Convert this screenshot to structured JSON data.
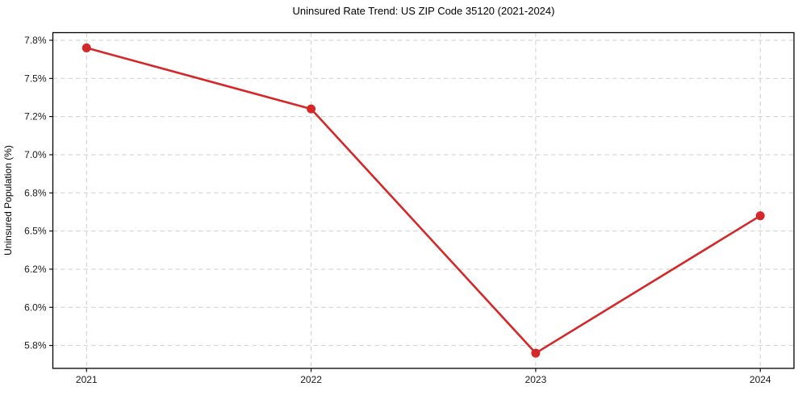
{
  "figure": {
    "title": "Uninsured Rate Trend: US ZIP Code 35120 (2021-2024)",
    "y_axis_title": "Uninsured Population (%)"
  },
  "chart_data": {
    "type": "line",
    "title": "Uninsured Rate Trend: US ZIP Code 35120 (2021-2024)",
    "xlabel": "",
    "ylabel": "Uninsured Population (%)",
    "x": [
      2021,
      2022,
      2023,
      2024
    ],
    "series": [
      {
        "name": "uninsured_rate_pct",
        "values": [
          7.7,
          7.3,
          5.7,
          6.6
        ]
      }
    ],
    "xlim": [
      2020.85,
      2024.15
    ],
    "ylim": [
      5.6,
      7.8
    ],
    "xticks": [
      {
        "value": 2021,
        "label": "2021"
      },
      {
        "value": 2022,
        "label": "2022"
      },
      {
        "value": 2023,
        "label": "2023"
      },
      {
        "value": 2024,
        "label": "2024"
      }
    ],
    "yticks": [
      {
        "value": 7.75,
        "label": "7.8%"
      },
      {
        "value": 7.5,
        "label": "7.5%"
      },
      {
        "value": 7.25,
        "label": "7.2%"
      },
      {
        "value": 7.0,
        "label": "7.0%"
      },
      {
        "value": 6.75,
        "label": "6.8%"
      },
      {
        "value": 6.5,
        "label": "6.5%"
      },
      {
        "value": 6.25,
        "label": "6.2%"
      },
      {
        "value": 6.0,
        "label": "6.0%"
      },
      {
        "value": 5.75,
        "label": "5.8%"
      }
    ],
    "grid": true,
    "grid_style": "dashed",
    "legend": "none",
    "colors": {
      "line": "#d62728",
      "marker": "#d62728",
      "grid": "#cfcfcf",
      "spine": "#000000",
      "tick_text": "#1a1a1a",
      "background": "#ffffff"
    }
  }
}
